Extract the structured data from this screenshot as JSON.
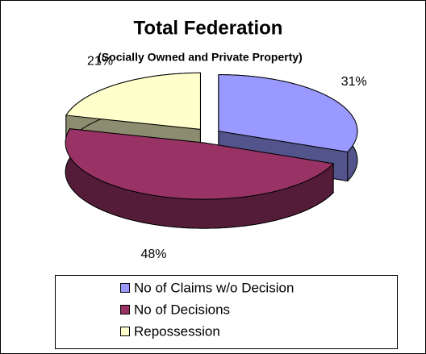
{
  "chart_data": {
    "type": "pie",
    "title": "Total Federation",
    "subtitle": "(Socially Owned and Private Property)",
    "categories": [
      "No of Claims w/o Decision",
      "No of Decisions",
      "Repossession"
    ],
    "values": [
      31,
      48,
      21
    ],
    "value_labels": [
      "31%",
      "48%",
      "21%"
    ],
    "colors": [
      "#9999ff",
      "#993366",
      "#ffffcc"
    ],
    "legend": "bottom"
  }
}
